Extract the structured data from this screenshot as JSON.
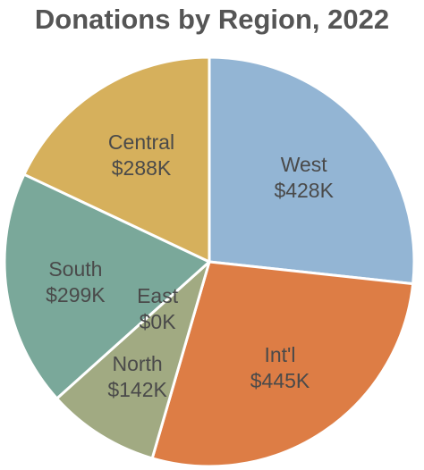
{
  "chart_data": {
    "type": "pie",
    "title": "Donations by Region, 2022",
    "slices": [
      {
        "label": "West",
        "value": 428,
        "display": "$428K",
        "color": "#93b5d4"
      },
      {
        "label": "Int'l",
        "value": 445,
        "display": "$445K",
        "color": "#dd7d45"
      },
      {
        "label": "North",
        "value": 142,
        "display": "$142K",
        "color": "#a1aa82"
      },
      {
        "label": "East",
        "value": 0,
        "display": "$0K",
        "color": "#a1aa82"
      },
      {
        "label": "South",
        "value": 299,
        "display": "$299K",
        "color": "#7aa89a"
      },
      {
        "label": "Central",
        "value": 288,
        "display": "$288K",
        "color": "#d6b05c"
      }
    ],
    "start_angle_deg": 0,
    "direction": "clockwise"
  }
}
